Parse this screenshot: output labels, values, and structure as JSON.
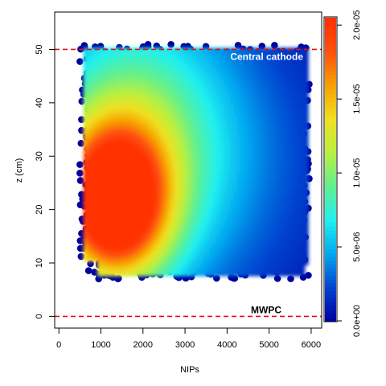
{
  "chart_data": {
    "type": "heatmap",
    "xlabel": "NIPs",
    "ylabel": "z (cm)",
    "xlim": [
      -100,
      6250
    ],
    "ylim": [
      -2.2,
      57
    ],
    "x_ticks": [
      0,
      1000,
      2000,
      3000,
      4000,
      5000,
      6000
    ],
    "y_ticks": [
      0,
      10,
      20,
      30,
      40,
      50
    ],
    "point_extent": {
      "x": [
        500,
        6000
      ],
      "z": [
        7,
        51
      ]
    },
    "density_peak": {
      "x": 1300,
      "z": 21
    },
    "colorbar": {
      "min": 0,
      "max": 2.05e-05,
      "ticks": [
        "0.0e+00",
        "5.0e-06",
        "1.0e-05",
        "1.5e-05",
        "2.0e-05"
      ],
      "tick_values": [
        0,
        5e-06,
        1e-05,
        1.5e-05,
        2e-05
      ],
      "colors": [
        "#0000a0",
        "#0044d0",
        "#00a8f0",
        "#20f0f0",
        "#60f090",
        "#b8f040",
        "#f0e020",
        "#f8a000",
        "#ff5010",
        "#ff3000"
      ]
    },
    "reference_lines": [
      {
        "z": 50,
        "label": "Central cathode",
        "color": "#e01010"
      },
      {
        "z": 0,
        "label": "MWPC",
        "color": "#e01010"
      }
    ]
  }
}
